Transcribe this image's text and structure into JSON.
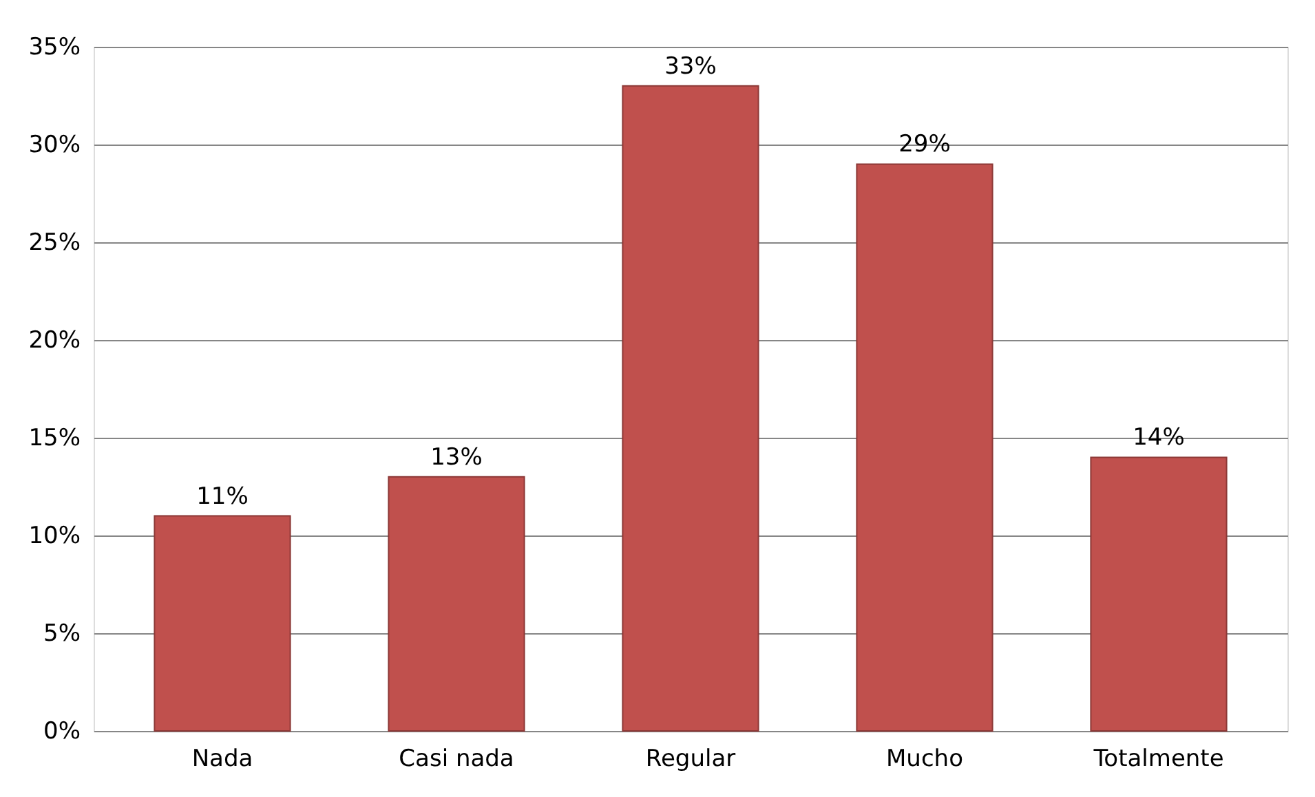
{
  "chart_data": {
    "type": "bar",
    "categories": [
      "Nada",
      "Casi nada",
      "Regular",
      "Mucho",
      "Totalmente"
    ],
    "values": [
      11,
      13,
      33,
      29,
      14
    ],
    "color": "#c0504d",
    "value_labels": [
      "11%",
      "13%",
      "33%",
      "29%",
      "14%"
    ],
    "ylim": [
      0,
      35
    ],
    "yticks": [
      {
        "value": 0,
        "label": "0%"
      },
      {
        "value": 5,
        "label": "5%"
      },
      {
        "value": 10,
        "label": "10%"
      },
      {
        "value": 15,
        "label": "15%"
      },
      {
        "value": 20,
        "label": "20%"
      },
      {
        "value": 25,
        "label": "25%"
      },
      {
        "value": 30,
        "label": "30%"
      },
      {
        "value": 35,
        "label": "35%"
      }
    ],
    "grid": "y"
  }
}
